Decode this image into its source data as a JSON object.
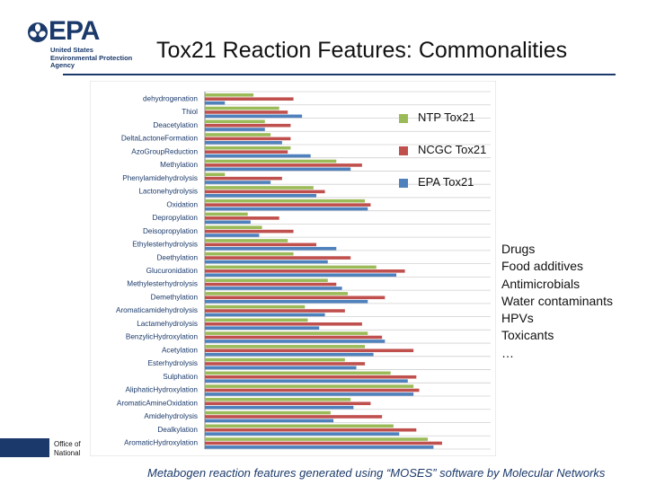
{
  "header": {
    "logo_text": "EPA",
    "logo_sub": [
      "United States",
      "Environmental Protection",
      "Agency"
    ],
    "title": "Tox21 Reaction Features: Commonalities"
  },
  "colors": {
    "ntp": "#9bbb59",
    "ncgc": "#c0504d",
    "epa": "#4f81bd",
    "brand": "#1b3a6b"
  },
  "chart_data": {
    "type": "bar",
    "orientation": "horizontal",
    "title": "",
    "xlabel": "",
    "ylabel": "",
    "grid": true,
    "xlim": [
      0,
      1
    ],
    "legend_position": "right",
    "categories": [
      "dehydrogenation",
      "Thiol",
      "Deacetylation",
      "DeltaLactoneFormation",
      "AzoGroupReduction",
      "Methylation",
      "Phenylamidehydrolysis",
      "Lactonehydrolysis",
      "Oxidation",
      "Depropylation",
      "Deisopropylation",
      "Ethylesterhydrolysis",
      "Deethylation",
      "Glucuronidation",
      "Methylesterhydrolysis",
      "Demethylation",
      "Aromaticamidehydrolysis",
      "Lactamehydrolysis",
      "BenzylicHydroxylation",
      "Acetylation",
      "Esterhydrolysis",
      "Sulphation",
      "AliphaticHydroxylation",
      "AromaticAmineOxidation",
      "Amidehydrolysis",
      "Dealkylation",
      "AromaticHydroxylation"
    ],
    "series": [
      {
        "name": "NTP Tox21",
        "values": [
          0.17,
          0.26,
          0.21,
          0.23,
          0.3,
          0.46,
          0.07,
          0.38,
          0.56,
          0.15,
          0.2,
          0.29,
          0.31,
          0.6,
          0.43,
          0.5,
          0.35,
          0.36,
          0.57,
          0.56,
          0.49,
          0.65,
          0.73,
          0.51,
          0.44,
          0.66,
          0.78
        ]
      },
      {
        "name": "NCGC Tox21",
        "values": [
          0.31,
          0.29,
          0.3,
          0.3,
          0.29,
          0.55,
          0.27,
          0.42,
          0.58,
          0.26,
          0.31,
          0.39,
          0.51,
          0.7,
          0.46,
          0.63,
          0.49,
          0.55,
          0.62,
          0.73,
          0.56,
          0.74,
          0.75,
          0.58,
          0.62,
          0.74,
          0.83
        ]
      },
      {
        "name": "EPA Tox21",
        "values": [
          0.07,
          0.34,
          0.21,
          0.27,
          0.37,
          0.51,
          0.23,
          0.39,
          0.57,
          0.16,
          0.19,
          0.46,
          0.43,
          0.67,
          0.48,
          0.57,
          0.42,
          0.4,
          0.63,
          0.59,
          0.53,
          0.71,
          0.73,
          0.52,
          0.45,
          0.68,
          0.8
        ]
      }
    ]
  },
  "legend": [
    {
      "label": "NTP Tox21",
      "color": "#9bbb59"
    },
    {
      "label": "NCGC Tox21",
      "color": "#c0504d"
    },
    {
      "label": "EPA Tox21",
      "color": "#4f81bd"
    }
  ],
  "categories_list": [
    "Drugs",
    "Food additives",
    "Antimicrobials",
    "Water contaminants",
    "HPVs",
    "Toxicants",
    "…"
  ],
  "footer": {
    "office_text": [
      "Office of",
      "National"
    ],
    "caption": "Metabogen reaction features generated using “MOSES” software by Molecular Networks"
  }
}
